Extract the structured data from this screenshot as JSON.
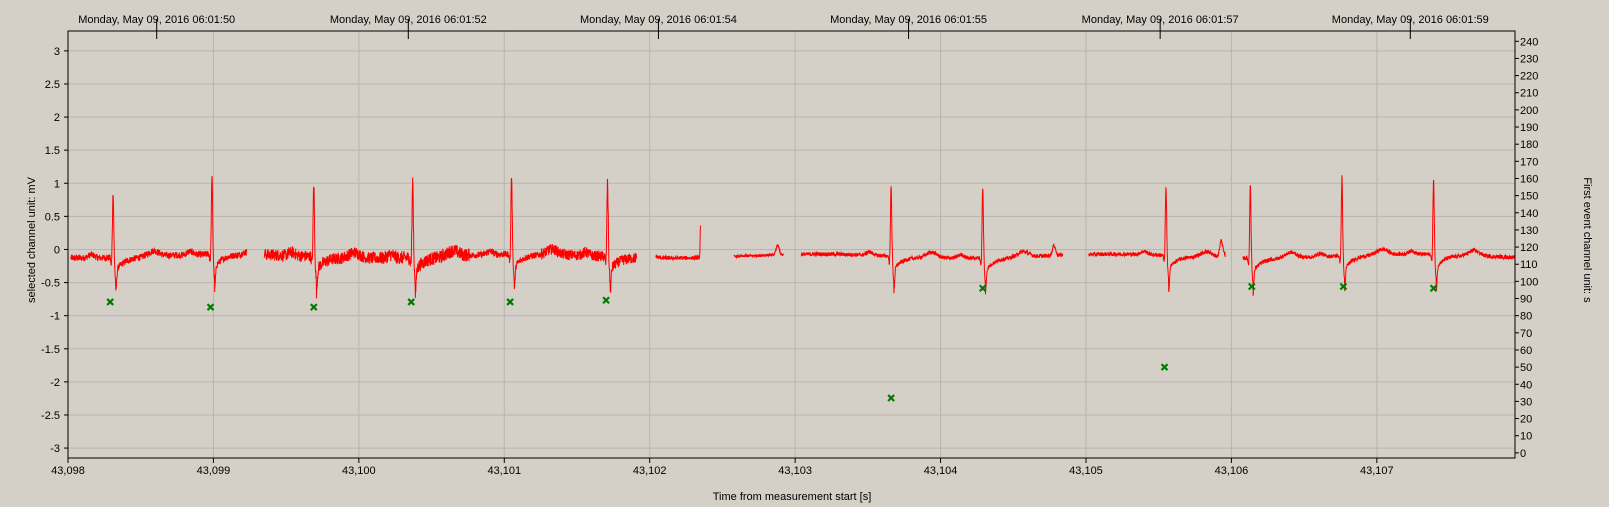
{
  "chart_data": {
    "type": "line",
    "title": "",
    "xlabel": "Time from measurement start [s]",
    "ylabel_left": "selected channel unit: mV",
    "ylabel_right": "First event channel unit: s",
    "xlim": [
      43098,
      43107.95
    ],
    "ylim_left": [
      -3.15,
      3.3
    ],
    "ylim_right": [
      -3,
      246
    ],
    "grid": true,
    "x_ticks": [
      "43,098",
      "43,099",
      "43,100",
      "43,101",
      "43,102",
      "43,103",
      "43,104",
      "43,105",
      "43,106",
      "43,107"
    ],
    "x_tick_values": [
      43098,
      43099,
      43100,
      43101,
      43102,
      43103,
      43104,
      43105,
      43106,
      43107
    ],
    "y_left_ticks": [
      "3",
      "2.5",
      "2",
      "1.5",
      "1",
      "0.5",
      "0",
      "-0.5",
      "-1",
      "-1.5",
      "-2",
      "-2.5",
      "-3"
    ],
    "y_left_tick_values": [
      3,
      2.5,
      2,
      1.5,
      1,
      0.5,
      0,
      -0.5,
      -1,
      -1.5,
      -2,
      -2.5,
      -3
    ],
    "y_right_ticks": [
      "240",
      "230",
      "220",
      "210",
      "200",
      "190",
      "180",
      "170",
      "160",
      "150",
      "140",
      "130",
      "120",
      "110",
      "100",
      "90",
      "80",
      "70",
      "60",
      "50",
      "40",
      "30",
      "20",
      "10",
      "0"
    ],
    "y_right_tick_values": [
      240,
      230,
      220,
      210,
      200,
      190,
      180,
      170,
      160,
      150,
      140,
      130,
      120,
      110,
      100,
      90,
      80,
      70,
      60,
      50,
      40,
      30,
      20,
      10,
      0
    ],
    "top_axis_labels": [
      {
        "label": "Monday, May 09, 2016 06:01:50",
        "x": 43098.61
      },
      {
        "label": "Monday, May 09, 2016 06:01:52",
        "x": 43100.34
      },
      {
        "label": "Monday, May 09, 2016 06:01:54",
        "x": 43102.06
      },
      {
        "label": "Monday, May 09, 2016 06:01:55",
        "x": 43103.78
      },
      {
        "label": "Monday, May 09, 2016 06:01:57",
        "x": 43105.51
      },
      {
        "label": "Monday, May 09, 2016 06:01:59",
        "x": 43107.23
      }
    ],
    "series": [
      {
        "color": "#ff0000",
        "segments": [
          {
            "start": 43098.02,
            "end": 43099.23,
            "noise": 0.05
          },
          {
            "start": 43099.35,
            "end": 43100.15,
            "noise": 0.09
          },
          {
            "start": 43100.15,
            "end": 43100.76,
            "noise": 0.1
          },
          {
            "start": 43100.76,
            "end": 43101.25,
            "noise": 0.05
          },
          {
            "start": 43101.25,
            "end": 43101.91,
            "noise": 0.08
          },
          {
            "start": 43102.04,
            "end": 43102.35,
            "noise": 0.03
          },
          {
            "start": 43102.58,
            "end": 43102.92,
            "noise": 0.02
          },
          {
            "start": 43103.04,
            "end": 43104.84,
            "noise": 0.03
          },
          {
            "start": 43105.02,
            "end": 43105.96,
            "noise": 0.03
          },
          {
            "start": 43106.08,
            "end": 43107.95,
            "noise": 0.03
          }
        ],
        "beats": [
          {
            "x": 43098.31,
            "peak": 0.9
          },
          {
            "x": 43098.99,
            "peak": 1.08
          },
          {
            "x": 43099.69,
            "peak": 1.0
          },
          {
            "x": 43100.37,
            "peak": 1.06
          },
          {
            "x": 43101.05,
            "peak": 1.1
          },
          {
            "x": 43101.71,
            "peak": 1.05
          },
          {
            "x": 43103.66,
            "peak": 0.95
          },
          {
            "x": 43104.29,
            "peak": 0.95
          },
          {
            "x": 43105.55,
            "peak": 0.95
          },
          {
            "x": 43106.13,
            "peak": 1.0
          },
          {
            "x": 43106.76,
            "peak": 1.1
          },
          {
            "x": 43107.39,
            "peak": 1.05
          }
        ],
        "extra_features": [
          {
            "x": 43102.35,
            "y": 0.3,
            "kind": "spike"
          },
          {
            "x": 43102.88,
            "y": 0.05,
            "kind": "bump"
          },
          {
            "x": 43104.78,
            "y": 0.05,
            "kind": "bump"
          },
          {
            "x": 43105.93,
            "y": 0.15,
            "kind": "bump"
          }
        ]
      },
      {
        "color": "#007a00",
        "axis": "right",
        "marker": "x",
        "points": [
          [
            43098.29,
            88
          ],
          [
            43098.98,
            85
          ],
          [
            43099.69,
            85
          ],
          [
            43100.36,
            88
          ],
          [
            43101.04,
            88
          ],
          [
            43101.7,
            89
          ],
          [
            43103.66,
            32
          ],
          [
            43104.29,
            96
          ],
          [
            43105.54,
            50
          ],
          [
            43106.14,
            97
          ],
          [
            43106.77,
            97
          ],
          [
            43107.39,
            96
          ]
        ]
      }
    ]
  }
}
